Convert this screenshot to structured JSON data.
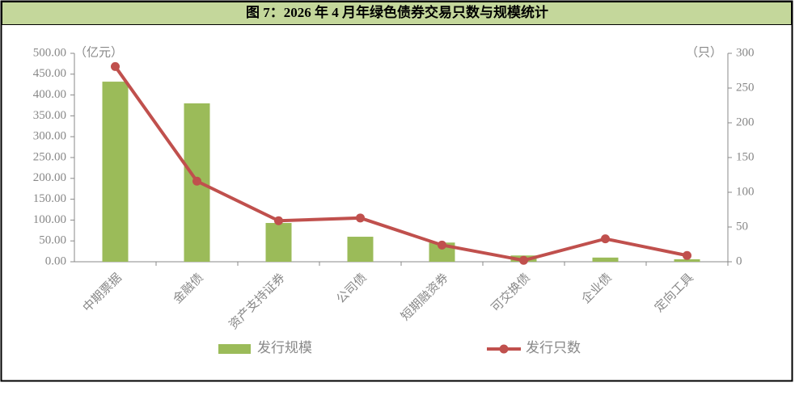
{
  "chart_data": {
    "type": "bar-line",
    "title": "图 7：2026 年 4 月年绿色债券交易只数与规模统计",
    "y_label": "（亿元）",
    "y2_label": "（只）",
    "categories": [
      "中期票据",
      "金融债",
      "资产支持证券",
      "公司债",
      "短期融资券",
      "可交换债",
      "企业债",
      "定向工具"
    ],
    "series": [
      {
        "name": "发行规模",
        "type": "bar",
        "color": "#9bbb59",
        "values": [
          432,
          380,
          93,
          60,
          46,
          15,
          10,
          6
        ]
      },
      {
        "name": "发行只数",
        "type": "line",
        "color": "#c0504d",
        "axis": "y2",
        "values": [
          281,
          116,
          59,
          63,
          24,
          2,
          33,
          9
        ]
      }
    ],
    "ylim": [
      0,
      500
    ],
    "yticks": [
      {
        "value": 0,
        "label": "0.00"
      },
      {
        "value": 50,
        "label": "50.00"
      },
      {
        "value": 100,
        "label": "100.00"
      },
      {
        "value": 150,
        "label": "150.00"
      },
      {
        "value": 200,
        "label": "200.00"
      },
      {
        "value": 250,
        "label": "250.00"
      },
      {
        "value": 300,
        "label": "300.00"
      },
      {
        "value": 350,
        "label": "350.00"
      },
      {
        "value": 400,
        "label": "400.00"
      },
      {
        "value": 450,
        "label": "450.00"
      },
      {
        "value": 500,
        "label": "500.00"
      }
    ],
    "y2lim": [
      0,
      300
    ],
    "y2ticks": [
      0,
      50,
      100,
      150,
      200,
      250,
      300
    ],
    "grid": false
  }
}
